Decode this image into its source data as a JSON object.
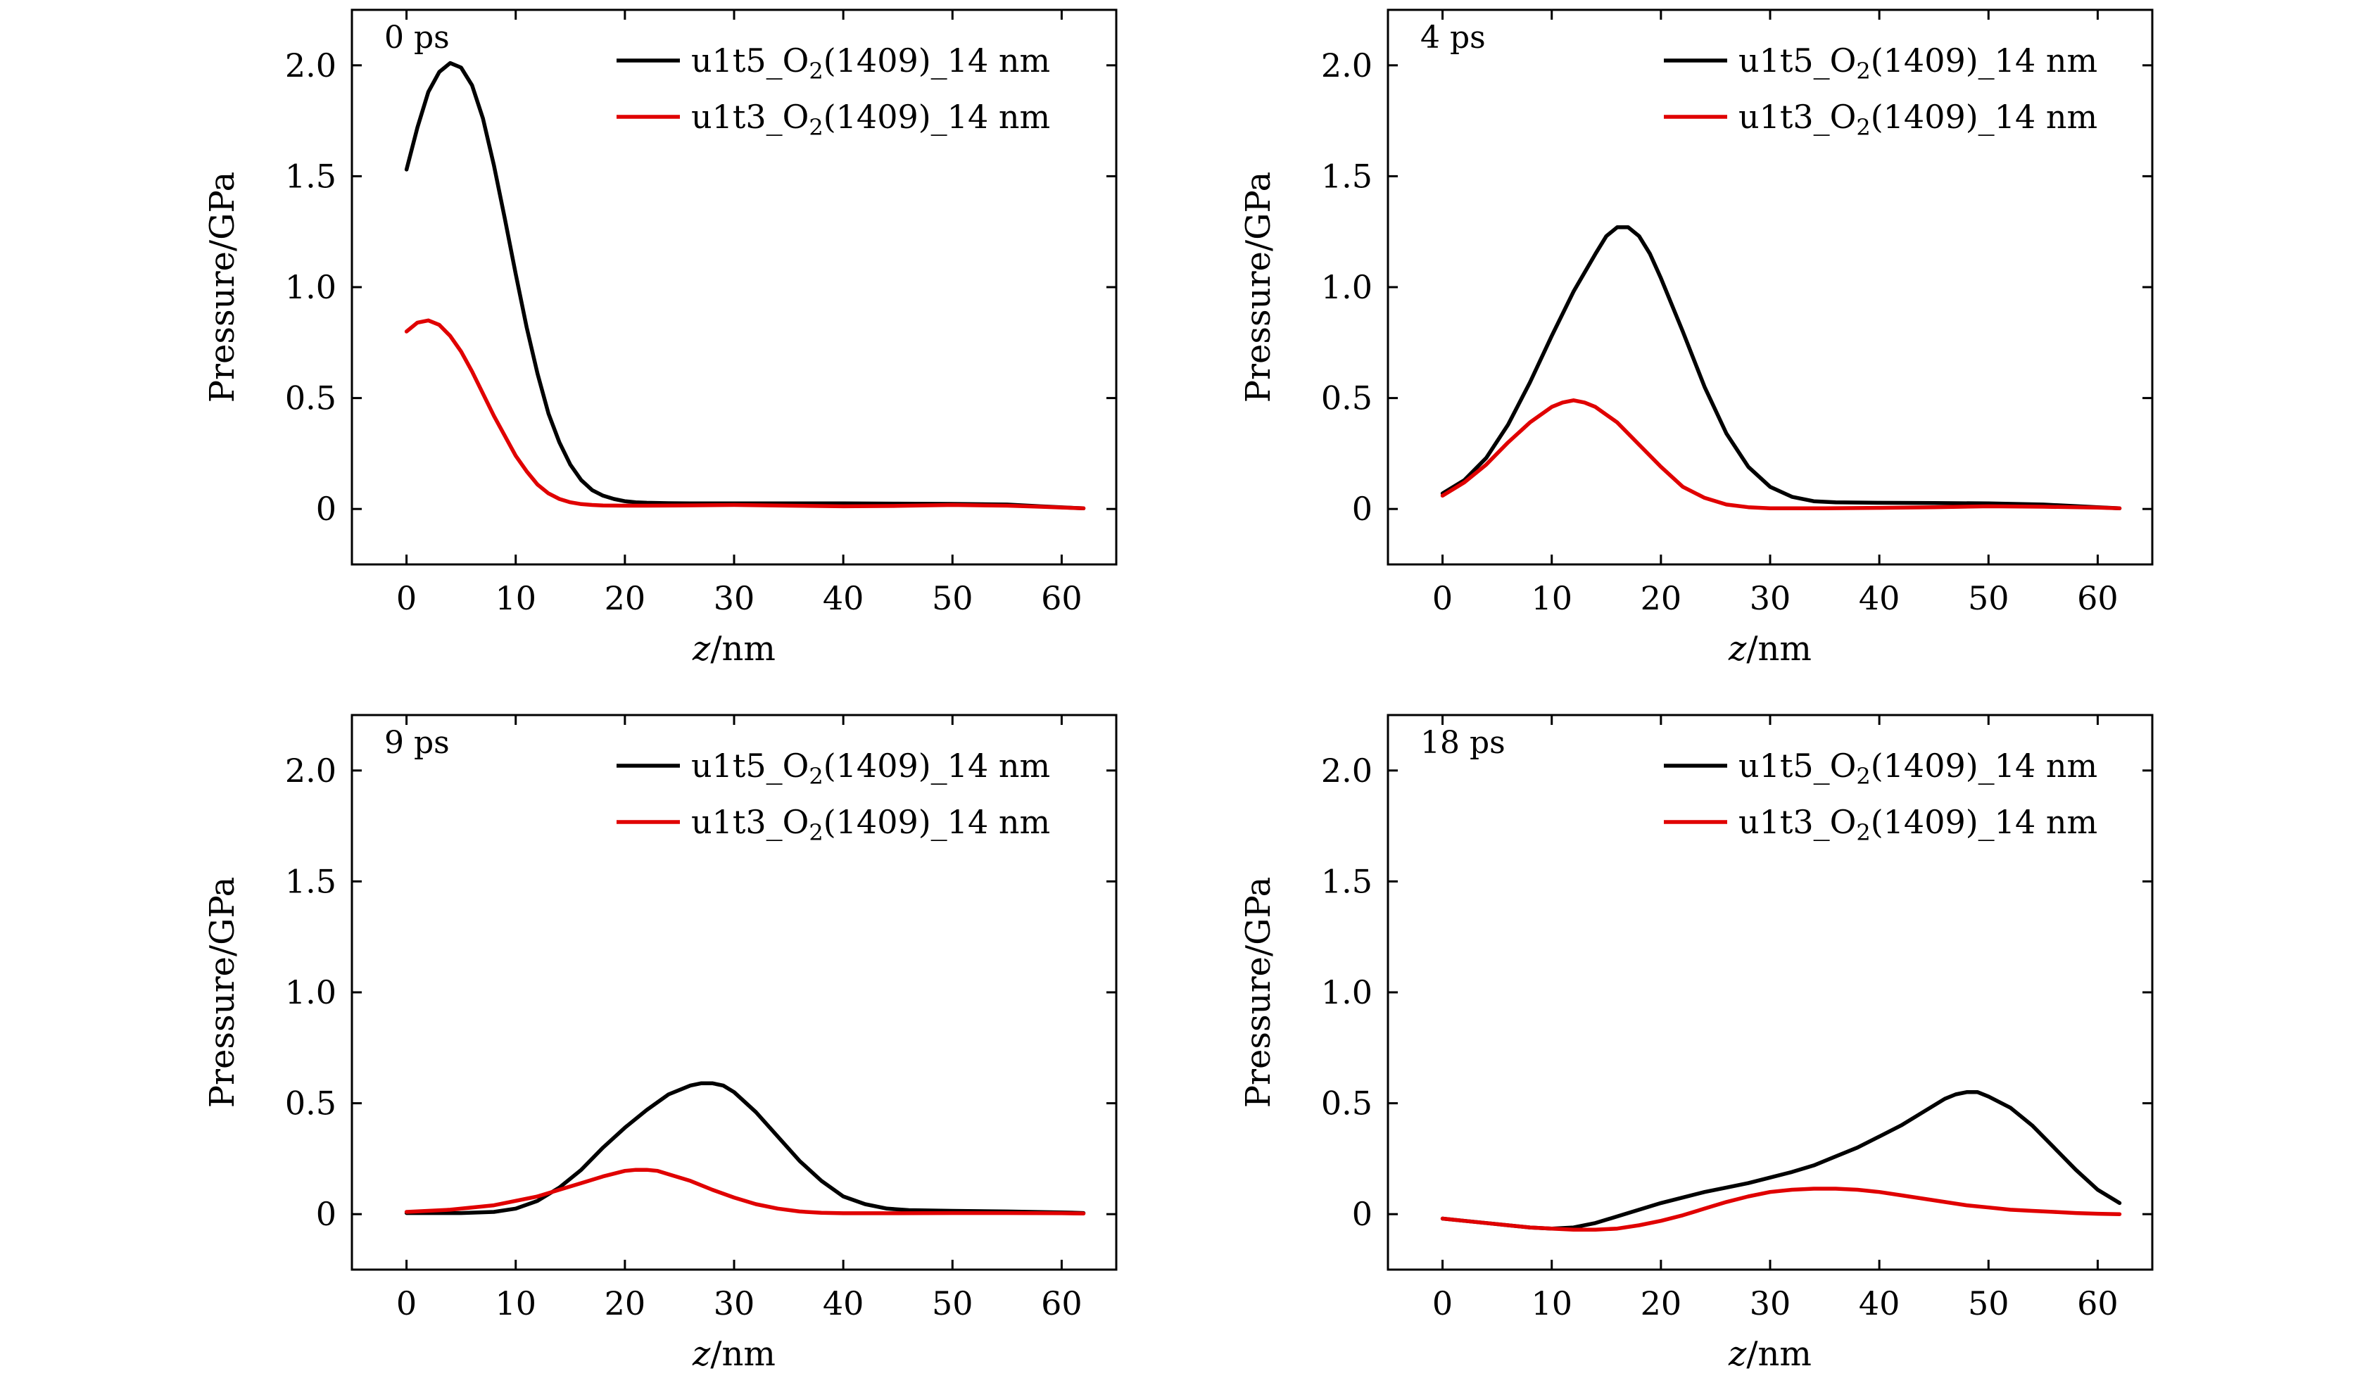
{
  "colors": {
    "black": "#000000",
    "red": "#e00000"
  },
  "chart_data": [
    {
      "type": "line",
      "panel_label": "0 ps",
      "xlabel": "z/nm",
      "ylabel": "Pressure/GPa",
      "xlim": [
        -5,
        65
      ],
      "ylim": [
        -0.25,
        2.25
      ],
      "xticks": [
        0,
        10,
        20,
        30,
        40,
        50,
        60
      ],
      "xtick_labels": [
        "0",
        "10",
        "20",
        "30",
        "40",
        "50",
        "60"
      ],
      "yticks": [
        0,
        0.5,
        1.0,
        1.5,
        2.0
      ],
      "ytick_labels": [
        "0",
        "0.5",
        "1.0",
        "1.5",
        "2.0"
      ],
      "legend": "top-right",
      "series": [
        {
          "name": "u1t5_O₂(1409)_14 nm",
          "color": "#000000",
          "x": [
            0,
            1,
            2,
            3,
            4,
            5,
            6,
            7,
            8,
            9,
            10,
            11,
            12,
            13,
            14,
            15,
            16,
            17,
            18,
            19,
            20,
            21,
            22,
            24,
            26,
            30,
            35,
            40,
            45,
            50,
            55,
            58,
            62
          ],
          "y": [
            1.53,
            1.72,
            1.88,
            1.97,
            2.01,
            1.99,
            1.91,
            1.76,
            1.55,
            1.31,
            1.06,
            0.82,
            0.61,
            0.43,
            0.3,
            0.2,
            0.13,
            0.085,
            0.06,
            0.045,
            0.035,
            0.03,
            0.028,
            0.026,
            0.025,
            0.025,
            0.025,
            0.025,
            0.024,
            0.023,
            0.02,
            0.012,
            0.003
          ]
        },
        {
          "name": "u1t3_O₂(1409)_14 nm",
          "color": "#e00000",
          "x": [
            0,
            1,
            2,
            3,
            4,
            5,
            6,
            7,
            8,
            9,
            10,
            11,
            12,
            13,
            14,
            15,
            16,
            17,
            18,
            20,
            22,
            25,
            30,
            35,
            40,
            45,
            50,
            55,
            58,
            62
          ],
          "y": [
            0.8,
            0.84,
            0.85,
            0.83,
            0.78,
            0.71,
            0.62,
            0.52,
            0.42,
            0.33,
            0.24,
            0.17,
            0.11,
            0.07,
            0.045,
            0.03,
            0.022,
            0.018,
            0.016,
            0.015,
            0.015,
            0.016,
            0.018,
            0.015,
            0.012,
            0.014,
            0.018,
            0.015,
            0.01,
            0.003
          ]
        }
      ]
    },
    {
      "type": "line",
      "panel_label": "4 ps",
      "xlabel": "z/nm",
      "ylabel": "Pressure/GPa",
      "xlim": [
        -5,
        65
      ],
      "ylim": [
        -0.25,
        2.25
      ],
      "xticks": [
        0,
        10,
        20,
        30,
        40,
        50,
        60
      ],
      "xtick_labels": [
        "0",
        "10",
        "20",
        "30",
        "40",
        "50",
        "60"
      ],
      "yticks": [
        0,
        0.5,
        1.0,
        1.5,
        2.0
      ],
      "ytick_labels": [
        "0",
        "0.5",
        "1.0",
        "1.5",
        "2.0"
      ],
      "legend": "top-right",
      "series": [
        {
          "name": "u1t5_O₂(1409)_14 nm",
          "color": "#000000",
          "x": [
            0,
            2,
            4,
            6,
            8,
            10,
            12,
            14,
            15,
            16,
            17,
            18,
            19,
            20,
            22,
            24,
            26,
            28,
            30,
            32,
            34,
            36,
            40,
            45,
            50,
            55,
            60,
            62
          ],
          "y": [
            0.07,
            0.13,
            0.23,
            0.38,
            0.57,
            0.78,
            0.98,
            1.15,
            1.23,
            1.27,
            1.27,
            1.23,
            1.15,
            1.04,
            0.8,
            0.55,
            0.34,
            0.19,
            0.1,
            0.055,
            0.035,
            0.03,
            0.028,
            0.027,
            0.025,
            0.02,
            0.008,
            0.003
          ]
        },
        {
          "name": "u1t3_O₂(1409)_14 nm",
          "color": "#e00000",
          "x": [
            0,
            2,
            4,
            6,
            8,
            10,
            11,
            12,
            13,
            14,
            16,
            18,
            20,
            22,
            24,
            26,
            28,
            30,
            35,
            40,
            45,
            50,
            55,
            60,
            62
          ],
          "y": [
            0.06,
            0.12,
            0.2,
            0.3,
            0.39,
            0.46,
            0.48,
            0.49,
            0.48,
            0.46,
            0.39,
            0.29,
            0.19,
            0.1,
            0.05,
            0.02,
            0.008,
            0.003,
            0.003,
            0.005,
            0.008,
            0.012,
            0.01,
            0.006,
            0.003
          ]
        }
      ]
    },
    {
      "type": "line",
      "panel_label": "9 ps",
      "xlabel": "z/nm",
      "ylabel": "Pressure/GPa",
      "xlim": [
        -5,
        65
      ],
      "ylim": [
        -0.25,
        2.25
      ],
      "xticks": [
        0,
        10,
        20,
        30,
        40,
        50,
        60
      ],
      "xtick_labels": [
        "0",
        "10",
        "20",
        "30",
        "40",
        "50",
        "60"
      ],
      "yticks": [
        0,
        0.5,
        1.0,
        1.5,
        2.0
      ],
      "ytick_labels": [
        "0",
        "0.5",
        "1.0",
        "1.5",
        "2.0"
      ],
      "legend": "top-right",
      "series": [
        {
          "name": "u1t5_O₂(1409)_14 nm",
          "color": "#000000",
          "x": [
            0,
            5,
            8,
            10,
            12,
            14,
            16,
            18,
            20,
            22,
            24,
            26,
            27,
            28,
            29,
            30,
            32,
            34,
            36,
            38,
            40,
            42,
            44,
            46,
            50,
            55,
            60,
            62
          ],
          "y": [
            0.005,
            0.005,
            0.01,
            0.025,
            0.06,
            0.12,
            0.2,
            0.3,
            0.39,
            0.47,
            0.54,
            0.58,
            0.59,
            0.59,
            0.58,
            0.55,
            0.46,
            0.35,
            0.24,
            0.15,
            0.08,
            0.045,
            0.025,
            0.018,
            0.015,
            0.012,
            0.008,
            0.005
          ]
        },
        {
          "name": "u1t3_O₂(1409)_14 nm",
          "color": "#e00000",
          "x": [
            0,
            4,
            8,
            12,
            14,
            16,
            18,
            20,
            21,
            22,
            23,
            24,
            26,
            28,
            30,
            32,
            34,
            36,
            38,
            40,
            45,
            50,
            55,
            60,
            62
          ],
          "y": [
            0.01,
            0.02,
            0.04,
            0.08,
            0.11,
            0.14,
            0.17,
            0.195,
            0.2,
            0.2,
            0.195,
            0.18,
            0.15,
            0.11,
            0.075,
            0.045,
            0.025,
            0.012,
            0.006,
            0.004,
            0.004,
            0.005,
            0.005,
            0.004,
            0.003
          ]
        }
      ]
    },
    {
      "type": "line",
      "panel_label": "18 ps",
      "xlabel": "z/nm",
      "ylabel": "Pressure/GPa",
      "xlim": [
        -5,
        65
      ],
      "ylim": [
        -0.25,
        2.25
      ],
      "xticks": [
        0,
        10,
        20,
        30,
        40,
        50,
        60
      ],
      "xtick_labels": [
        "0",
        "10",
        "20",
        "30",
        "40",
        "50",
        "60"
      ],
      "yticks": [
        0,
        0.5,
        1.0,
        1.5,
        2.0
      ],
      "ytick_labels": [
        "0",
        "0.5",
        "1.0",
        "1.5",
        "2.0"
      ],
      "legend": "top-right",
      "series": [
        {
          "name": "u1t5_O₂(1409)_14 nm",
          "color": "#000000",
          "x": [
            0,
            2,
            4,
            6,
            8,
            10,
            12,
            14,
            16,
            18,
            20,
            22,
            24,
            26,
            28,
            30,
            32,
            34,
            36,
            38,
            40,
            42,
            44,
            46,
            47,
            48,
            49,
            50,
            52,
            54,
            56,
            58,
            60,
            62
          ],
          "y": [
            -0.02,
            -0.03,
            -0.04,
            -0.05,
            -0.06,
            -0.065,
            -0.06,
            -0.04,
            -0.01,
            0.02,
            0.05,
            0.075,
            0.1,
            0.12,
            0.14,
            0.165,
            0.19,
            0.22,
            0.26,
            0.3,
            0.35,
            0.4,
            0.46,
            0.52,
            0.54,
            0.55,
            0.55,
            0.53,
            0.48,
            0.4,
            0.3,
            0.2,
            0.11,
            0.05
          ]
        },
        {
          "name": "u1t3_O₂(1409)_14 nm",
          "color": "#e00000",
          "x": [
            0,
            2,
            4,
            6,
            8,
            10,
            12,
            14,
            16,
            18,
            20,
            22,
            24,
            26,
            28,
            30,
            32,
            34,
            36,
            38,
            40,
            42,
            44,
            46,
            48,
            50,
            52,
            54,
            56,
            58,
            60,
            62
          ],
          "y": [
            -0.02,
            -0.03,
            -0.04,
            -0.05,
            -0.06,
            -0.065,
            -0.07,
            -0.07,
            -0.065,
            -0.05,
            -0.03,
            -0.005,
            0.025,
            0.055,
            0.08,
            0.1,
            0.11,
            0.115,
            0.115,
            0.11,
            0.1,
            0.085,
            0.07,
            0.055,
            0.04,
            0.03,
            0.02,
            0.015,
            0.01,
            0.005,
            0.002,
            0.0
          ]
        }
      ]
    }
  ]
}
